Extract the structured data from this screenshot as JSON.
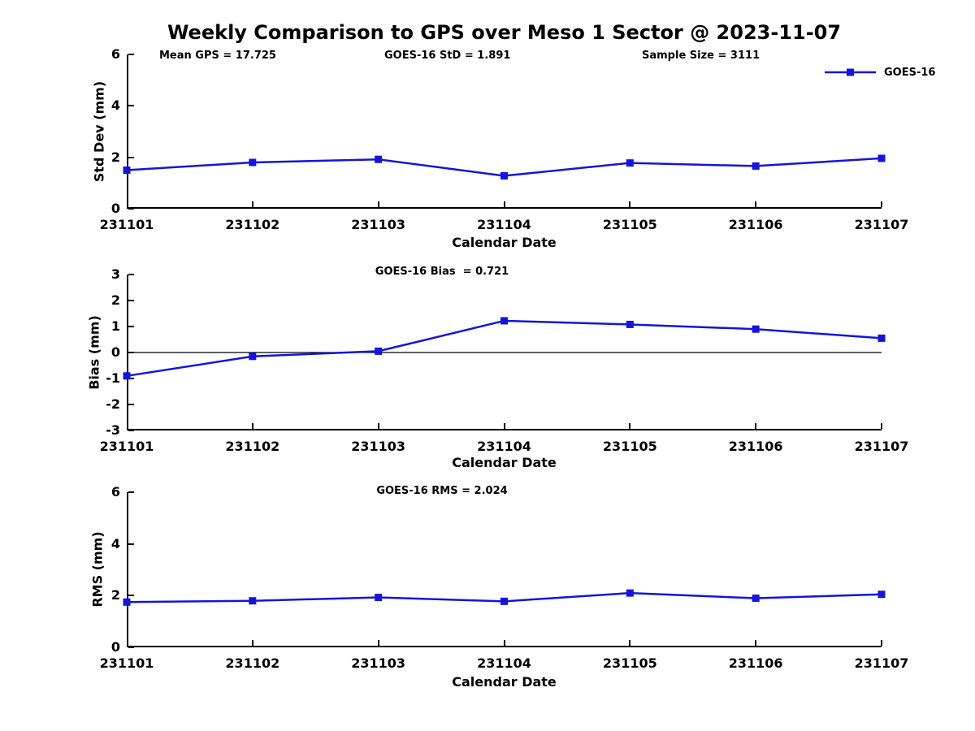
{
  "figure": {
    "title": "Weekly Comparison to GPS over Meso 1 Sector @ 2023-11-07",
    "background": "#ffffff"
  },
  "colors": {
    "series": "#1414dd",
    "axis": "#000000",
    "zero_line": "#000000",
    "text": "#000000"
  },
  "legend": {
    "label": "GOES-16",
    "swatch": "blue-line-with-square-marker"
  },
  "chart_data": [
    {
      "type": "line",
      "categories": [
        "231101",
        "231102",
        "231103",
        "231104",
        "231105",
        "231106",
        "231107"
      ],
      "series": [
        {
          "name": "GOES-16",
          "values": [
            1.5,
            1.8,
            1.92,
            1.28,
            1.78,
            1.66,
            1.96
          ]
        }
      ],
      "xlabel": "Calendar Date",
      "ylabel": "Std Dev (mm)",
      "ylim": [
        0,
        6
      ],
      "yticks": [
        0,
        2,
        4,
        6
      ],
      "grid": false,
      "legend_position": "top-right",
      "marker": "square",
      "annotations": [
        "Mean GPS = 17.725",
        "GOES-16 StD = 1.891",
        "Sample Size = 3111"
      ]
    },
    {
      "type": "line",
      "categories": [
        "231101",
        "231102",
        "231103",
        "231104",
        "231105",
        "231106",
        "231107"
      ],
      "series": [
        {
          "name": "GOES-16",
          "values": [
            -0.9,
            -0.15,
            0.05,
            1.22,
            1.08,
            0.9,
            0.55
          ]
        }
      ],
      "xlabel": "Calendar Date",
      "ylabel": "Bias (mm)",
      "ylim": [
        -3,
        3
      ],
      "yticks": [
        -3,
        -2,
        -1,
        0,
        1,
        2,
        3
      ],
      "zero_line": true,
      "grid": false,
      "marker": "square",
      "annotation": "GOES-16 Bias  = 0.721"
    },
    {
      "type": "line",
      "categories": [
        "231101",
        "231102",
        "231103",
        "231104",
        "231105",
        "231106",
        "231107"
      ],
      "series": [
        {
          "name": "GOES-16",
          "values": [
            1.75,
            1.8,
            1.93,
            1.78,
            2.1,
            1.9,
            2.05
          ]
        }
      ],
      "xlabel": "Calendar Date",
      "ylabel": "RMS (mm)",
      "ylim": [
        0,
        6
      ],
      "yticks": [
        0,
        2,
        4,
        6
      ],
      "grid": false,
      "marker": "square",
      "annotation": "GOES-16 RMS = 2.024"
    }
  ]
}
